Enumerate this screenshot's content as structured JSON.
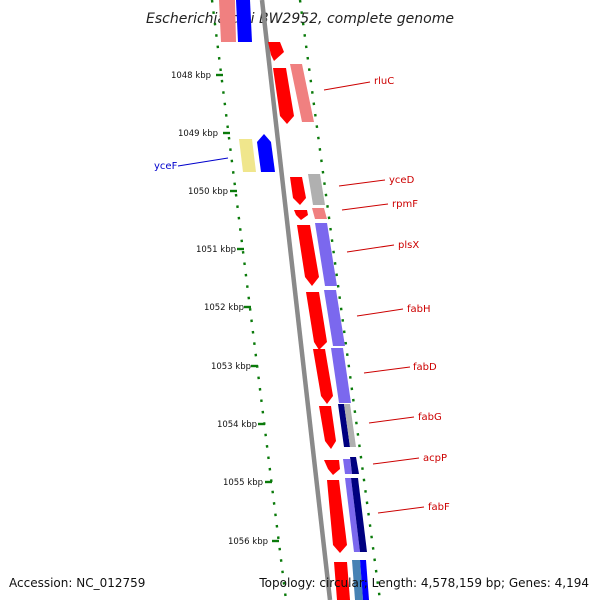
{
  "title": "Escherichia coli BW2952, complete genome",
  "footer": {
    "accession": "Accession: NC_012759",
    "topology": "Topology: circular; Length: 4,578,159 bp; Genes: 4,194"
  },
  "colors": {
    "cds_plus": "#ff0000",
    "cog_light_red": "#f08080",
    "cog_purple": "#7b68ee",
    "cog_navy": "#000080",
    "cog_blue": "#0000ff",
    "cog_gray": "#b0b0b0",
    "cog_yellow": "#f0e68c",
    "gc_dots": "#0a7a0a",
    "backbone": "#8a8a8a",
    "label_plus": "#cc0000",
    "label_minus": "#0000cc"
  },
  "ticks": [
    {
      "label": "1048 kbp"
    },
    {
      "label": "1049 kbp"
    },
    {
      "label": "1050 kbp"
    },
    {
      "label": "1051 kbp"
    },
    {
      "label": "1052 kbp"
    },
    {
      "label": "1053 kbp"
    },
    {
      "label": "1054 kbp"
    },
    {
      "label": "1055 kbp"
    },
    {
      "label": "1056 kbp"
    }
  ],
  "genes": [
    {
      "name": "rluC",
      "strand": "+"
    },
    {
      "name": "yceF",
      "strand": "-"
    },
    {
      "name": "yceD",
      "strand": "+"
    },
    {
      "name": "rpmF",
      "strand": "+"
    },
    {
      "name": "plsX",
      "strand": "+"
    },
    {
      "name": "fabH",
      "strand": "+"
    },
    {
      "name": "fabD",
      "strand": "+"
    },
    {
      "name": "fabG",
      "strand": "+"
    },
    {
      "name": "acpP",
      "strand": "+"
    },
    {
      "name": "fabF",
      "strand": "+"
    }
  ]
}
